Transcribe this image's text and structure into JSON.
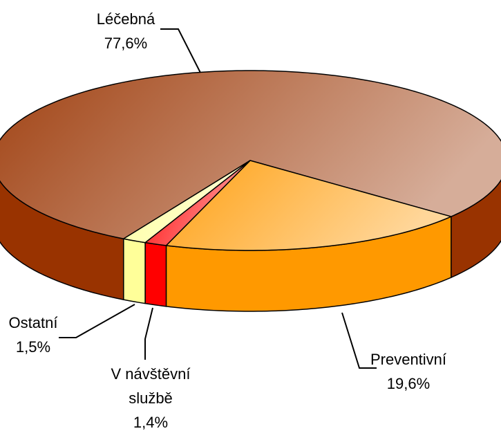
{
  "chart_data": {
    "type": "pie3d",
    "categories": [
      "Léčebná",
      "Preventivní",
      "V návštěvní službě",
      "Ostatní"
    ],
    "values": [
      77.6,
      19.6,
      1.4,
      1.5
    ],
    "value_labels": [
      "77,6%",
      "19,6%",
      "1,4%",
      "1,5%"
    ],
    "colors": [
      "#993300",
      "#ff9900",
      "#ff0000",
      "#ffff99"
    ]
  }
}
